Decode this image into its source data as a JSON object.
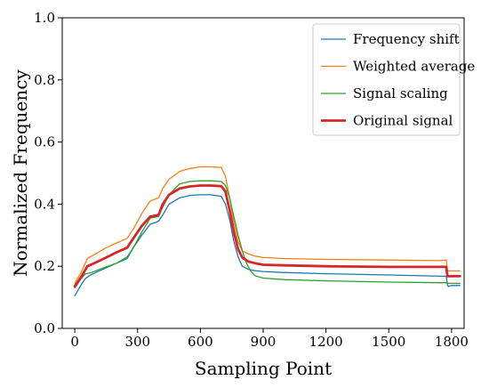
{
  "chart_data": {
    "type": "line",
    "xlabel": "Sampling Point",
    "ylabel": "Normalized Frequency",
    "xlim": [
      -60,
      1860
    ],
    "ylim": [
      0.0,
      1.0
    ],
    "xticks": [
      0,
      300,
      600,
      900,
      1200,
      1500,
      1800
    ],
    "xtick_labels": [
      "0",
      "300",
      "600",
      "900",
      "1200",
      "1500",
      "1800"
    ],
    "yticks": [
      0.0,
      0.2,
      0.4,
      0.6,
      0.8,
      1.0
    ],
    "ytick_labels": [
      "0.0",
      "0.2",
      "0.4",
      "0.6",
      "0.8",
      "1.0"
    ],
    "grid": false,
    "legend_position": "top-right",
    "series": [
      {
        "name": "Frequency shift",
        "color": "#1f77b4",
        "x": [
          0,
          30,
          50,
          70,
          100,
          150,
          200,
          250,
          280,
          320,
          360,
          400,
          420,
          450,
          500,
          550,
          600,
          650,
          700,
          720,
          740,
          760,
          780,
          800,
          830,
          860,
          900,
          1000,
          1200,
          1500,
          1750,
          1775,
          1780,
          1785,
          1800,
          1840
        ],
        "y": [
          0.105,
          0.14,
          0.16,
          0.17,
          0.18,
          0.195,
          0.21,
          0.225,
          0.26,
          0.3,
          0.335,
          0.345,
          0.365,
          0.4,
          0.42,
          0.428,
          0.43,
          0.43,
          0.425,
          0.4,
          0.35,
          0.28,
          0.23,
          0.2,
          0.19,
          0.186,
          0.183,
          0.18,
          0.176,
          0.172,
          0.168,
          0.168,
          0.14,
          0.135,
          0.138,
          0.138
        ]
      },
      {
        "name": "Weighted average",
        "color": "#ff7f0e",
        "x": [
          0,
          30,
          60,
          100,
          150,
          200,
          250,
          280,
          320,
          360,
          400,
          420,
          450,
          500,
          550,
          600,
          650,
          700,
          720,
          740,
          760,
          780,
          800,
          830,
          860,
          900,
          1000,
          1200,
          1500,
          1750,
          1775,
          1780,
          1790,
          1800,
          1840
        ],
        "y": [
          0.145,
          0.18,
          0.225,
          0.24,
          0.26,
          0.275,
          0.29,
          0.32,
          0.37,
          0.41,
          0.42,
          0.45,
          0.48,
          0.505,
          0.515,
          0.52,
          0.52,
          0.518,
          0.49,
          0.42,
          0.34,
          0.28,
          0.25,
          0.24,
          0.233,
          0.228,
          0.225,
          0.222,
          0.22,
          0.218,
          0.22,
          0.185,
          0.185,
          0.185,
          0.185
        ]
      },
      {
        "name": "Signal scaling",
        "color": "#2ca02c",
        "x": [
          0,
          30,
          50,
          80,
          100,
          150,
          200,
          250,
          280,
          320,
          360,
          400,
          420,
          450,
          500,
          550,
          600,
          650,
          700,
          720,
          740,
          760,
          780,
          800,
          820,
          840,
          860,
          900,
          1000,
          1200,
          1500,
          1750,
          1775,
          1780,
          1800,
          1840
        ],
        "y": [
          0.13,
          0.16,
          0.175,
          0.18,
          0.185,
          0.198,
          0.21,
          0.23,
          0.26,
          0.31,
          0.355,
          0.36,
          0.39,
          0.43,
          0.465,
          0.473,
          0.475,
          0.475,
          0.473,
          0.46,
          0.42,
          0.36,
          0.3,
          0.25,
          0.21,
          0.185,
          0.17,
          0.162,
          0.157,
          0.153,
          0.149,
          0.147,
          0.147,
          0.145,
          0.145,
          0.145
        ]
      },
      {
        "name": "Original signal",
        "color": "#d62728",
        "x": [
          0,
          30,
          60,
          100,
          150,
          200,
          250,
          280,
          320,
          360,
          400,
          420,
          450,
          500,
          550,
          600,
          650,
          700,
          720,
          740,
          760,
          780,
          800,
          830,
          860,
          900,
          1000,
          1200,
          1500,
          1750,
          1775,
          1780,
          1790,
          1800,
          1840
        ],
        "y": [
          0.135,
          0.165,
          0.2,
          0.212,
          0.228,
          0.245,
          0.26,
          0.29,
          0.33,
          0.36,
          0.365,
          0.4,
          0.43,
          0.45,
          0.457,
          0.46,
          0.46,
          0.458,
          0.44,
          0.38,
          0.31,
          0.255,
          0.228,
          0.215,
          0.21,
          0.205,
          0.203,
          0.2,
          0.198,
          0.198,
          0.198,
          0.168,
          0.168,
          0.168,
          0.168
        ]
      }
    ]
  }
}
